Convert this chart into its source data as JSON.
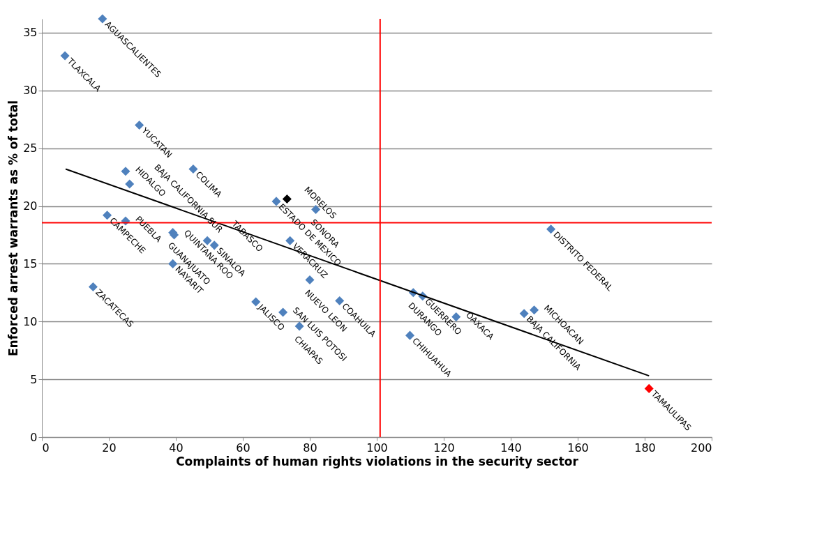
{
  "chart_data": {
    "type": "scatter",
    "xlabel": "Complaints of human rights violations in the security sector",
    "ylabel": "Enforced arrest warrants as % of total",
    "xlim": [
      0,
      200
    ],
    "xticks": [
      0,
      20,
      40,
      60,
      80,
      100,
      120,
      140,
      160,
      180,
      200
    ],
    "ylim": [
      0,
      36.2
    ],
    "yticks": [
      0,
      5,
      10,
      15,
      20,
      25,
      30,
      35
    ],
    "grid": "y",
    "series": [
      {
        "marker": "diamond",
        "x": [
          18.1,
          6.9,
          29.1,
          25.0,
          26.2,
          45.2,
          70.0,
          73.2,
          81.8,
          19.5,
          25.0,
          39.1,
          39.5,
          49.4,
          51.5,
          39.1,
          63.9,
          72.0,
          76.9,
          15.3,
          74.1,
          80.0,
          88.9,
          110.9,
          113.7,
          123.7,
          109.9,
          144.0,
          147.0,
          152.0,
          181.3
        ],
        "values": [
          36.2,
          33.0,
          27.0,
          23.0,
          21.9,
          23.2,
          20.4,
          20.6,
          19.7,
          19.2,
          18.7,
          17.7,
          17.5,
          17.0,
          16.6,
          15.0,
          11.7,
          10.8,
          9.6,
          13.0,
          17.0,
          13.6,
          11.8,
          12.5,
          12.2,
          10.4,
          8.8,
          10.7,
          11.0,
          18.0,
          4.2
        ],
        "colors": [
          "#4f81bd",
          "#4f81bd",
          "#4f81bd",
          "#4f81bd",
          "#4f81bd",
          "#4f81bd",
          "#4f81bd",
          "#000000",
          "#4f81bd",
          "#4f81bd",
          "#4f81bd",
          "#4f81bd",
          "#4f81bd",
          "#4f81bd",
          "#4f81bd",
          "#4f81bd",
          "#4f81bd",
          "#4f81bd",
          "#4f81bd",
          "#4f81bd",
          "#4f81bd",
          "#4f81bd",
          "#4f81bd",
          "#4f81bd",
          "#4f81bd",
          "#4f81bd",
          "#4f81bd",
          "#4f81bd",
          "#4f81bd",
          "#4f81bd",
          "#ff0000"
        ]
      },
      {
        "type": "line",
        "x": [
          7.1,
          181.3
        ],
        "values": [
          23.2,
          5.3
        ],
        "color": "#000000",
        "marker": "none"
      }
    ],
    "ref_lines": [
      {
        "axis": "x",
        "value": 101,
        "color": "#ff0000"
      },
      {
        "axis": "y",
        "value": 18.55,
        "color": "#ff0000"
      }
    ],
    "annotations": [
      {
        "text": "AGUASCALIENTES",
        "x": 18.1,
        "y": 36.2
      },
      {
        "text": "TLAXCALA",
        "x": 6.9,
        "y": 33.0
      },
      {
        "text": "YUCATAN",
        "x": 29.1,
        "y": 27.0
      },
      {
        "text": "HIDALGO",
        "x": 25.0,
        "y": 23.0
      },
      {
        "text": "BAJA CALIFORNIA SUR",
        "x": 26.2,
        "y": 21.9
      },
      {
        "text": "COLIMA",
        "x": 45.2,
        "y": 23.2
      },
      {
        "text": "ESTADO DE MEXICO",
        "x": 70.0,
        "y": 20.4
      },
      {
        "text": "MORELOS",
        "x": 73.2,
        "y": 20.6
      },
      {
        "text": "SONORA",
        "x": 81.8,
        "y": 19.7
      },
      {
        "text": "CAMPECHE",
        "x": 19.5,
        "y": 19.2
      },
      {
        "text": "PUEBLA",
        "x": 25.0,
        "y": 18.7
      },
      {
        "text": "GUANAJUATO",
        "x": 39.1,
        "y": 17.7
      },
      {
        "text": "QUINTANA ROO",
        "x": 39.5,
        "y": 17.5
      },
      {
        "text": "TABASCO",
        "x": 49.4,
        "y": 17.0
      },
      {
        "text": "SINALOA",
        "x": 51.5,
        "y": 16.6
      },
      {
        "text": "NAYARIT",
        "x": 39.1,
        "y": 15.0
      },
      {
        "text": "JALISCO",
        "x": 63.9,
        "y": 11.7
      },
      {
        "text": "SAN LUIS POTOSI",
        "x": 72.0,
        "y": 10.8
      },
      {
        "text": "CHIAPAS",
        "x": 76.9,
        "y": 9.6
      },
      {
        "text": "ZACATECAS",
        "x": 15.3,
        "y": 13.0
      },
      {
        "text": "VERACRUZ",
        "x": 74.1,
        "y": 17.0
      },
      {
        "text": "NUEVO LEON",
        "x": 80.0,
        "y": 13.6
      },
      {
        "text": "COAHUILA",
        "x": 88.9,
        "y": 11.8
      },
      {
        "text": "DURANGO",
        "x": 110.9,
        "y": 12.5
      },
      {
        "text": "GUERRERO",
        "x": 113.7,
        "y": 12.2
      },
      {
        "text": "OAXACA",
        "x": 123.7,
        "y": 10.4
      },
      {
        "text": "CHIHUAHUA",
        "x": 109.9,
        "y": 8.8
      },
      {
        "text": "BAJA CALIFORNIA",
        "x": 144.0,
        "y": 10.7
      },
      {
        "text": "MICHOACAN",
        "x": 147.0,
        "y": 11.0
      },
      {
        "text": "DISTRITO FEDERAL",
        "x": 152.0,
        "y": 18.0
      },
      {
        "text": "TAMAULIPAS",
        "x": 181.3,
        "y": 4.2
      }
    ]
  }
}
